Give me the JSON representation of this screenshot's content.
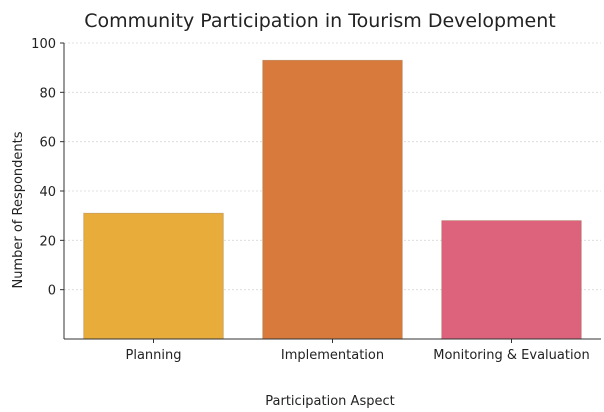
{
  "chart_data": {
    "type": "bar",
    "title": "Community Participation in Tourism Development",
    "xlabel": "Participation Aspect",
    "ylabel": "Number of Respondents",
    "categories": [
      "Planning",
      "Implementation",
      "Monitoring & Evaluation"
    ],
    "values": [
      31,
      93,
      28
    ],
    "colors": [
      "#e8ac3a",
      "#d97a3d",
      "#dd627c"
    ],
    "yticks": [
      0,
      20,
      40,
      60,
      80,
      100
    ],
    "ylim": [
      -20,
      100
    ],
    "grid": "horizontal dotted"
  }
}
